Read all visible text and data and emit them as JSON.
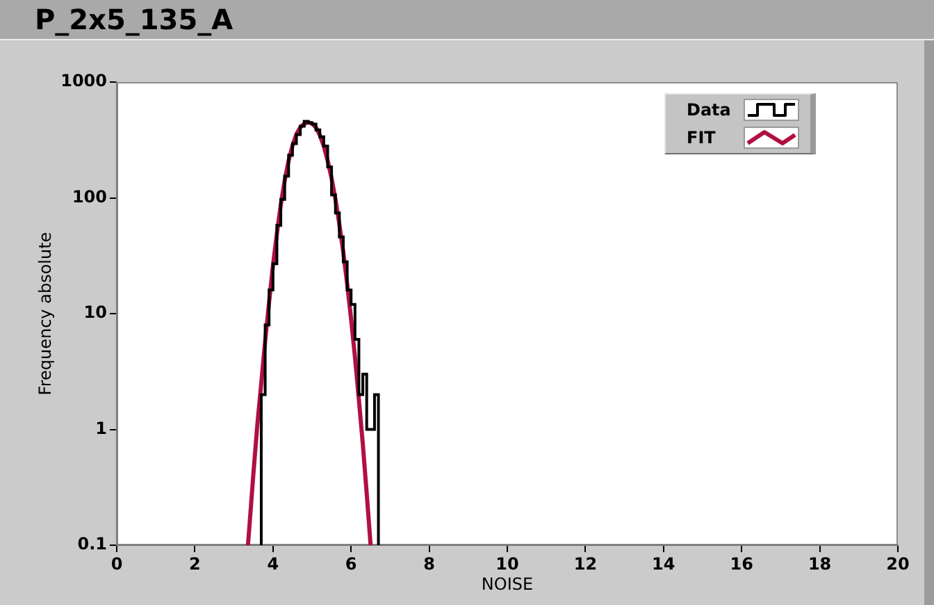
{
  "chart_data": {
    "type": "histogram",
    "title": "P_2x5_135_A",
    "xlabel": "NOISE",
    "ylabel": "Frequency absolute",
    "bins": [
      3.7,
      3.8,
      3.9,
      4.0,
      4.1,
      4.2,
      4.3,
      4.4,
      4.5,
      4.6,
      4.7,
      4.8,
      4.9,
      5.0,
      5.1,
      5.2,
      5.3,
      5.4,
      5.5,
      5.6,
      5.7,
      5.8,
      5.9,
      6.0,
      6.1,
      6.2,
      6.3,
      6.4,
      6.5,
      6.6,
      6.7
    ],
    "series": [
      {
        "name": "Data",
        "color": "#000000",
        "values": [
          2,
          8,
          16,
          27,
          58,
          97,
          154,
          233,
          294,
          352,
          416,
          457,
          445,
          433,
          387,
          337,
          280,
          185,
          106,
          74,
          46,
          28,
          16,
          12,
          6,
          2,
          3,
          1,
          1,
          2
        ]
      },
      {
        "name": "FIT",
        "type": "line",
        "color": "#b01040",
        "x": [
          3.36,
          3.4,
          3.5,
          3.6,
          3.7,
          3.8,
          3.9,
          4.0,
          4.1,
          4.2,
          4.3,
          4.4,
          4.5,
          4.6,
          4.7,
          4.8,
          4.9,
          5.0,
          5.1,
          5.2,
          5.3,
          5.4,
          5.5,
          5.6,
          5.7,
          5.8,
          5.9,
          6.0,
          6.1,
          6.2,
          6.3,
          6.4,
          6.5
        ],
        "values": [
          0.1,
          0.15,
          0.42,
          1.1,
          2.5,
          5.8,
          12.5,
          26,
          49,
          87,
          141,
          209,
          282,
          355,
          407,
          437,
          449,
          439,
          405,
          348,
          280,
          210,
          148,
          97,
          59,
          34,
          18,
          9,
          4.2,
          1.8,
          0.75,
          0.28,
          0.1
        ]
      }
    ],
    "xlim": [
      0,
      20
    ],
    "xticks": [
      0,
      2,
      4,
      6,
      8,
      10,
      12,
      14,
      16,
      18,
      20
    ],
    "ylim": [
      0.1,
      1000
    ],
    "yticks": [
      0.1,
      1,
      10,
      100,
      1000
    ],
    "log": true,
    "legend": "top right",
    "marker": "none"
  }
}
